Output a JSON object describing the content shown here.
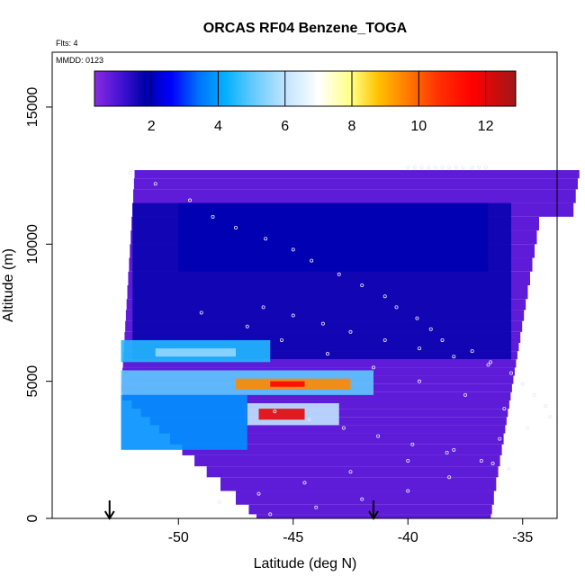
{
  "chart_data": {
    "type": "heatmap",
    "title": "ORCAS RF04 Benzene_TOGA",
    "flights_note": "Flts: 4",
    "date_note": "MMDD: 0123",
    "xlabel": "Latitude (deg N)",
    "ylabel": "Altitude (m)",
    "xlim": [
      -55.5,
      -33.5
    ],
    "ylim": [
      0,
      17000
    ],
    "xticks": [
      -50,
      -45,
      -40,
      -35
    ],
    "xtick_labels": [
      "-50",
      "-45",
      "-40",
      "-35"
    ],
    "yticks": [
      0,
      5000,
      10000,
      15000
    ],
    "ytick_labels": [
      "0",
      "5000",
      "10000",
      "15000"
    ],
    "colorbar": {
      "range": [
        0.3,
        12.9
      ],
      "ticks": [
        2,
        4,
        6,
        8,
        10,
        12
      ],
      "tick_labels": [
        "2",
        "4",
        "6",
        "8",
        "10",
        "12"
      ],
      "stops": [
        {
          "v": 0.3,
          "c": "#8a2be2"
        },
        {
          "v": 1.2,
          "c": "#3a0fd0"
        },
        {
          "v": 1.8,
          "c": "#0000a8"
        },
        {
          "v": 2.6,
          "c": "#0000ff"
        },
        {
          "v": 3.4,
          "c": "#0070ff"
        },
        {
          "v": 4.2,
          "c": "#00b0ff"
        },
        {
          "v": 5.0,
          "c": "#60c8ff"
        },
        {
          "v": 6.0,
          "c": "#c0e4ff"
        },
        {
          "v": 7.0,
          "c": "#ffffff"
        },
        {
          "v": 8.0,
          "c": "#ffff80"
        },
        {
          "v": 8.8,
          "c": "#ffc000"
        },
        {
          "v": 9.6,
          "c": "#ff8000"
        },
        {
          "v": 10.6,
          "c": "#ff3000"
        },
        {
          "v": 11.6,
          "c": "#ff0000"
        },
        {
          "v": 12.9,
          "c": "#a01818"
        }
      ]
    },
    "altitude_bins_m": [
      12700,
      12400,
      12000,
      11500,
      11000,
      10500,
      10000,
      9500,
      9000,
      8500,
      8000,
      7600,
      7200,
      6800,
      6400,
      6100,
      5800,
      5500,
      5200,
      4900,
      4600,
      4300,
      4000,
      3700,
      3400,
      3100,
      2700,
      2300,
      1900,
      1500,
      1000,
      500,
      150
    ],
    "fields": [
      {
        "name": "background",
        "lat0": -52.5,
        "lat1": -34.0,
        "alt0": 0,
        "alt1": 12700,
        "value": 0.8
      },
      {
        "name": "mid-troposphere band",
        "lat0": -52.0,
        "lat1": -35.5,
        "alt0": 5800,
        "alt1": 11500,
        "value": 1.7
      },
      {
        "name": "upper band",
        "lat0": -50.0,
        "lat1": -36.5,
        "alt0": 9000,
        "alt1": 11500,
        "value": 1.9
      },
      {
        "name": "plume 6 km",
        "lat0": -52.5,
        "lat1": -46.0,
        "alt0": 5700,
        "alt1": 6500,
        "value": 4.5
      },
      {
        "name": "plume 6 km core",
        "lat0": -51.0,
        "lat1": -47.5,
        "alt0": 5900,
        "alt1": 6200,
        "value": 5.5
      },
      {
        "name": "plume 4.9 km",
        "lat0": -52.5,
        "lat1": -41.5,
        "alt0": 4500,
        "alt1": 5400,
        "value": 5.0
      },
      {
        "name": "plume 4.9 km core",
        "lat0": -47.5,
        "lat1": -42.5,
        "alt0": 4700,
        "alt1": 5100,
        "value": 9.5
      },
      {
        "name": "plume 4.9 km peak",
        "lat0": -46.0,
        "lat1": -44.5,
        "alt0": 4800,
        "alt1": 5000,
        "value": 11.5
      },
      {
        "name": "plume 3.8 km",
        "lat0": -47.0,
        "lat1": -43.0,
        "alt0": 3400,
        "alt1": 4200,
        "value": 6.0
      },
      {
        "name": "plume 3.8 km core",
        "lat0": -46.5,
        "lat1": -44.5,
        "alt0": 3600,
        "alt1": 4000,
        "value": 12.0
      },
      {
        "name": "lower wedge",
        "lat0": -52.5,
        "lat1": -47.0,
        "alt0": 2500,
        "alt1": 4500,
        "value": 3.8
      }
    ],
    "samples_lat": [
      -52.1,
      -51.0,
      -49.5,
      -48.5,
      -47.5,
      -46.2,
      -45.0,
      -44.2,
      -43.0,
      -42.0,
      -41.0,
      -40.5,
      -39.6,
      -39.0,
      -38.5,
      -37.2,
      -36.4,
      -35.5,
      -35.0,
      -34.5,
      -34.0,
      -33.8,
      -48.2,
      -46.5,
      -44.5,
      -42.5,
      -40.0,
      -38.0,
      -36.0,
      -34.8,
      -49.0,
      -47.0,
      -45.5,
      -43.5,
      -41.5,
      -39.5,
      -37.5,
      -35.8,
      -46.0,
      -44.0,
      -42.0,
      -40.0,
      -38.2,
      -36.3,
      -45.8,
      -44.3,
      -42.8,
      -41.3,
      -39.8,
      -38.3,
      -36.8,
      -35.6,
      -46.3,
      -45.0,
      -43.7,
      -42.5,
      -41.0,
      -39.5,
      -38.0,
      -36.5,
      -40.0,
      -39.7,
      -39.4,
      -39.1,
      -38.8,
      -38.5,
      -38.2,
      -37.9,
      -37.6,
      -37.2,
      -36.9,
      -36.6
    ],
    "samples_alt": [
      12600,
      12200,
      11600,
      11000,
      10600,
      10200,
      9800,
      9400,
      8900,
      8500,
      8100,
      7700,
      7300,
      6900,
      6500,
      6100,
      5700,
      5300,
      4900,
      4500,
      4100,
      3700,
      600,
      900,
      1300,
      1700,
      2100,
      2500,
      2900,
      3300,
      7500,
      7000,
      6500,
      6000,
      5500,
      5000,
      4500,
      4000,
      150,
      400,
      700,
      1000,
      1500,
      2000,
      3900,
      3600,
      3300,
      3000,
      2700,
      2400,
      2100,
      1800,
      7700,
      7400,
      7100,
      6800,
      6500,
      6200,
      5900,
      5600,
      12800,
      12800,
      12800,
      12800,
      12800,
      12800,
      12800,
      12800,
      12800,
      12800,
      12800,
      12800
    ],
    "arrows_lat": [
      -53.0,
      -41.5
    ]
  }
}
